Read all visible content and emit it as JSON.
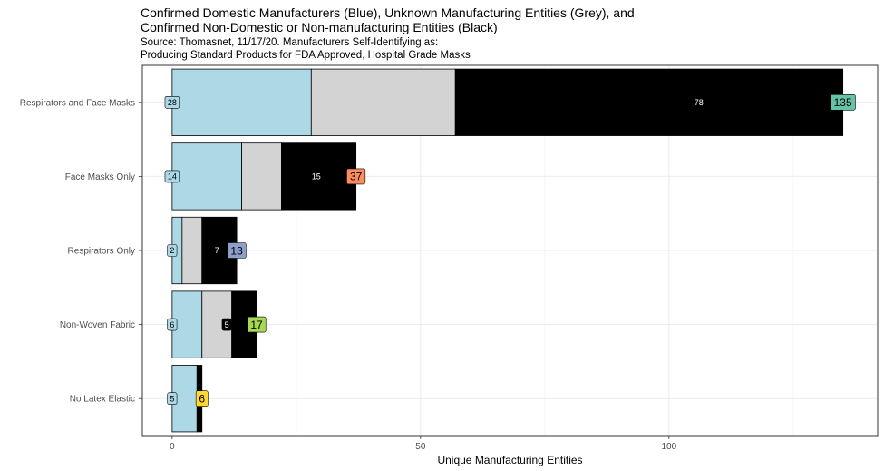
{
  "chart_data": {
    "type": "bar",
    "orientation": "horizontal",
    "stacked": true,
    "title_lines": [
      "Confirmed Domestic Manufacturers (Blue), Unknown Manufacturing Entities (Grey), and",
      "Confirmed Non-Domestic or Non-manufacturing Entities (Black)"
    ],
    "subtitle_lines": [
      "Source: Thomasnet, 11/17/20. Manufacturers Self-Identifying as:",
      "Producing Standard Products for FDA Approved, Hospital Grade Masks"
    ],
    "xlabel": "Unique Manufacturing Entities",
    "ylabel": "",
    "xlim": [
      -6,
      142
    ],
    "xticks": [
      0,
      50,
      100
    ],
    "grid": true,
    "categories": [
      "Respirators and Face Masks",
      "Face Masks Only",
      "Respirators Only",
      "Non-Woven Fabric",
      "No Latex Elastic"
    ],
    "series": [
      {
        "color": "#add8e6",
        "values": [
          28,
          14,
          2,
          6,
          5
        ]
      },
      {
        "color": "#d3d3d3",
        "values": [
          29,
          8,
          4,
          6,
          0
        ]
      },
      {
        "color": "#000000",
        "values": [
          78,
          15,
          7,
          5,
          1
        ]
      }
    ],
    "segment_labels": {
      "blue": [
        "28",
        "14",
        "2",
        "6",
        "5"
      ],
      "black": [
        "78",
        "15",
        "7",
        "5",
        ""
      ]
    },
    "totals": [
      "135",
      "37",
      "13",
      "17",
      "6"
    ],
    "total_values": [
      135,
      37,
      13,
      17,
      6
    ],
    "total_colors": [
      "#66c2a5",
      "#fc8d62",
      "#8da0cb",
      "#a6d854",
      "#ffd92f"
    ]
  }
}
